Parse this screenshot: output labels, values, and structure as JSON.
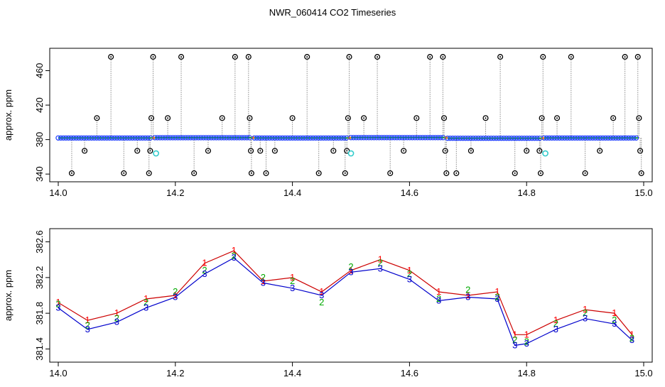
{
  "page": {
    "title": "NWR_060414  CO2 Timeseries"
  },
  "colors": {
    "axis": "#000000",
    "trace": "#8c8c8c",
    "flag_outlier": "#000000",
    "marker_main": "#1f3fff",
    "marker_green": "#00b300",
    "marker_cyan": "#33cccc",
    "series_1": "#ff0000",
    "series_2": "#00aa00",
    "series_3": "#0000cc",
    "line_red": "#cc0000",
    "line_blue": "#0000cc"
  },
  "chart_data": [
    {
      "type": "scatter",
      "title": "NWR_060414  CO2 Timeseries",
      "xlabel": "",
      "ylabel": "approx. ppm",
      "xlim": [
        14.0,
        15.0
      ],
      "ylim": [
        336,
        481
      ],
      "x_ticks": [
        14.0,
        14.2,
        14.4,
        14.6,
        14.8,
        15.0
      ],
      "x_tick_labels": [
        "14.0",
        "14.2",
        "14.4",
        "14.6",
        "14.8",
        "15.0"
      ],
      "y_ticks": [
        340,
        380,
        420,
        460
      ],
      "y_tick_labels": [
        "340",
        "380",
        "420",
        "460"
      ],
      "grid": false,
      "baseline_segments": [
        {
          "x": [
            14.0,
            14.16
          ],
          "y": 381.9
        },
        {
          "x": [
            14.165,
            14.33
          ],
          "y": 382.2
        },
        {
          "x": [
            14.335,
            14.495
          ],
          "y": 381.9
        },
        {
          "x": [
            14.5,
            14.66
          ],
          "y": 382.3
        },
        {
          "x": [
            14.665,
            14.825
          ],
          "y": 381.6
        },
        {
          "x": [
            14.83,
            14.99
          ],
          "y": 381.9
        }
      ],
      "outliers": [
        {
          "x": 14.023,
          "y": 341
        },
        {
          "x": 14.045,
          "y": 367
        },
        {
          "x": 14.066,
          "y": 405
        },
        {
          "x": 14.09,
          "y": 476
        },
        {
          "x": 14.112,
          "y": 341
        },
        {
          "x": 14.135,
          "y": 367
        },
        {
          "x": 14.155,
          "y": 341
        },
        {
          "x": 14.157,
          "y": 367
        },
        {
          "x": 14.159,
          "y": 405
        },
        {
          "x": 14.162,
          "y": 476
        },
        {
          "x": 14.187,
          "y": 405
        },
        {
          "x": 14.21,
          "y": 476
        },
        {
          "x": 14.232,
          "y": 341
        },
        {
          "x": 14.256,
          "y": 367
        },
        {
          "x": 14.28,
          "y": 405
        },
        {
          "x": 14.302,
          "y": 476
        },
        {
          "x": 14.325,
          "y": 476
        },
        {
          "x": 14.327,
          "y": 405
        },
        {
          "x": 14.329,
          "y": 367
        },
        {
          "x": 14.33,
          "y": 341
        },
        {
          "x": 14.345,
          "y": 367
        },
        {
          "x": 14.355,
          "y": 341
        },
        {
          "x": 14.37,
          "y": 367
        },
        {
          "x": 14.4,
          "y": 405
        },
        {
          "x": 14.425,
          "y": 476
        },
        {
          "x": 14.445,
          "y": 341
        },
        {
          "x": 14.47,
          "y": 367
        },
        {
          "x": 14.49,
          "y": 341
        },
        {
          "x": 14.493,
          "y": 367
        },
        {
          "x": 14.495,
          "y": 405
        },
        {
          "x": 14.497,
          "y": 476
        },
        {
          "x": 14.522,
          "y": 405
        },
        {
          "x": 14.545,
          "y": 476
        },
        {
          "x": 14.567,
          "y": 341
        },
        {
          "x": 14.59,
          "y": 367
        },
        {
          "x": 14.612,
          "y": 405
        },
        {
          "x": 14.635,
          "y": 476
        },
        {
          "x": 14.657,
          "y": 476
        },
        {
          "x": 14.659,
          "y": 405
        },
        {
          "x": 14.661,
          "y": 367
        },
        {
          "x": 14.663,
          "y": 341
        },
        {
          "x": 14.68,
          "y": 341
        },
        {
          "x": 14.705,
          "y": 367
        },
        {
          "x": 14.73,
          "y": 405
        },
        {
          "x": 14.755,
          "y": 476
        },
        {
          "x": 14.78,
          "y": 341
        },
        {
          "x": 14.8,
          "y": 367
        },
        {
          "x": 14.822,
          "y": 367
        },
        {
          "x": 14.824,
          "y": 341
        },
        {
          "x": 14.826,
          "y": 405
        },
        {
          "x": 14.828,
          "y": 476
        },
        {
          "x": 14.852,
          "y": 405
        },
        {
          "x": 14.876,
          "y": 476
        },
        {
          "x": 14.9,
          "y": 341
        },
        {
          "x": 14.925,
          "y": 367
        },
        {
          "x": 14.948,
          "y": 405
        },
        {
          "x": 14.968,
          "y": 476
        },
        {
          "x": 14.99,
          "y": 476
        },
        {
          "x": 14.992,
          "y": 405
        },
        {
          "x": 14.994,
          "y": 367
        },
        {
          "x": 14.996,
          "y": 341
        }
      ],
      "cyan_points": [
        {
          "x": 14.167,
          "y": 364
        },
        {
          "x": 14.5,
          "y": 364
        },
        {
          "x": 14.832,
          "y": 364
        }
      ]
    },
    {
      "type": "line",
      "xlabel": "",
      "ylabel": "approx. ppm",
      "xlim": [
        14.0,
        15.0
      ],
      "ylim": [
        381.3,
        382.7
      ],
      "x_ticks": [
        14.0,
        14.2,
        14.4,
        14.6,
        14.8,
        15.0
      ],
      "x_tick_labels": [
        "14.0",
        "14.2",
        "14.4",
        "14.6",
        "14.8",
        "15.0"
      ],
      "y_ticks": [
        381.4,
        381.8,
        382.2,
        382.6
      ],
      "y_tick_labels": [
        "381.4",
        "381.8",
        "382.2",
        "382.6"
      ],
      "grid": false,
      "series": [
        {
          "name": "1",
          "color_key": "series_1",
          "x": [
            14.0,
            14.05,
            14.1,
            14.15,
            14.2,
            14.25,
            14.3,
            14.35,
            14.4,
            14.45,
            14.5,
            14.55,
            14.6,
            14.65,
            14.7,
            14.75,
            14.78,
            14.8,
            14.85,
            14.9,
            14.95,
            14.98
          ],
          "y": [
            381.92,
            381.72,
            381.8,
            381.96,
            382.0,
            382.36,
            382.5,
            382.16,
            382.2,
            382.04,
            382.28,
            382.4,
            382.28,
            382.04,
            382.0,
            382.04,
            381.56,
            381.56,
            381.72,
            381.84,
            381.8,
            381.56
          ]
        },
        {
          "name": "2",
          "color_key": "series_2",
          "x": [
            14.0,
            14.05,
            14.1,
            14.15,
            14.2,
            14.25,
            14.3,
            14.35,
            14.4,
            14.45,
            14.5,
            14.55,
            14.6,
            14.65,
            14.7,
            14.75,
            14.78,
            14.8,
            14.85,
            14.9,
            14.95,
            14.98
          ],
          "y": [
            381.9,
            381.66,
            381.74,
            381.92,
            382.04,
            382.28,
            382.44,
            382.2,
            382.16,
            381.92,
            382.32,
            382.36,
            382.24,
            381.96,
            382.06,
            381.98,
            381.5,
            381.48,
            381.68,
            381.8,
            381.72,
            381.52
          ]
        },
        {
          "name": "3",
          "color_key": "series_3",
          "x": [
            14.0,
            14.05,
            14.1,
            14.15,
            14.2,
            14.25,
            14.3,
            14.35,
            14.4,
            14.45,
            14.5,
            14.55,
            14.6,
            14.65,
            14.7,
            14.75,
            14.78,
            14.8,
            14.85,
            14.9,
            14.95,
            14.98
          ],
          "y": [
            381.86,
            381.62,
            381.7,
            381.86,
            381.98,
            382.24,
            382.42,
            382.14,
            382.08,
            382.0,
            382.26,
            382.3,
            382.18,
            381.94,
            381.98,
            381.96,
            381.44,
            381.46,
            381.62,
            381.74,
            381.68,
            381.5
          ]
        }
      ]
    }
  ]
}
